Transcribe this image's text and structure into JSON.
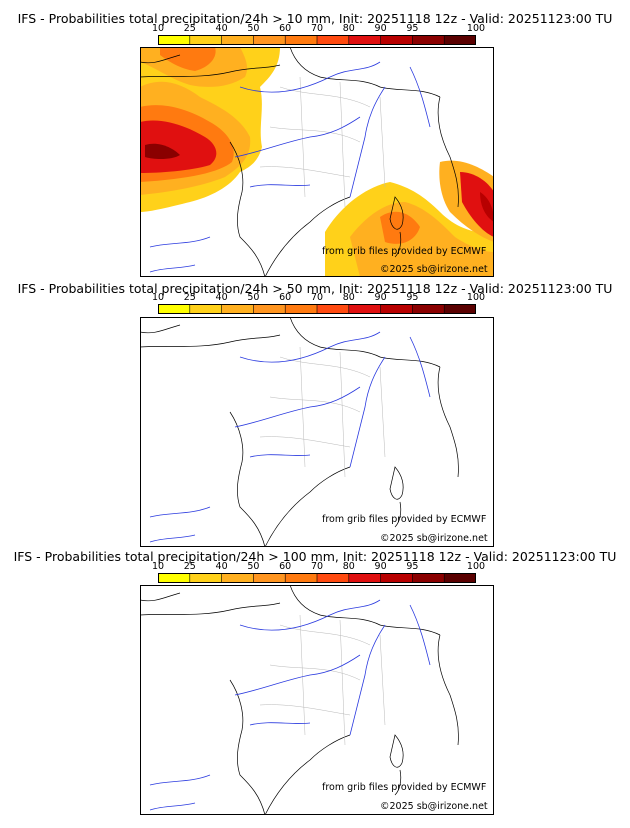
{
  "panels": [
    {
      "title": "IFS - Probabilities total precipitation/24h > 10 mm, Init: 20251118 12z - Valid: 20251123:00 TU",
      "threshold_mm": 10
    },
    {
      "title": "IFS - Probabilities total precipitation/24h > 50 mm, Init: 20251118 12z - Valid: 20251123:00 TU",
      "threshold_mm": 50
    },
    {
      "title": "IFS - Probabilities total precipitation/24h > 100 mm, Init: 20251118 12z - Valid: 20251123:00 TU",
      "threshold_mm": 100
    }
  ],
  "colorbar": {
    "ticks": [
      "10",
      "25",
      "40",
      "50",
      "60",
      "70",
      "80",
      "90",
      "95",
      "100"
    ],
    "colors": [
      "#ffff00",
      "#ffd11a",
      "#ffb020",
      "#ff9520",
      "#ff7a10",
      "#ff4a10",
      "#e01010",
      "#b80000",
      "#8a0000",
      "#5a0000"
    ]
  },
  "credits": {
    "source": "from grib files provided by ECMWF",
    "copyright": "©2025 sb@irizone.net"
  },
  "colors": {
    "rivers": "#2a3adf",
    "borders": "#000000",
    "regions": "#b8b8b8"
  }
}
